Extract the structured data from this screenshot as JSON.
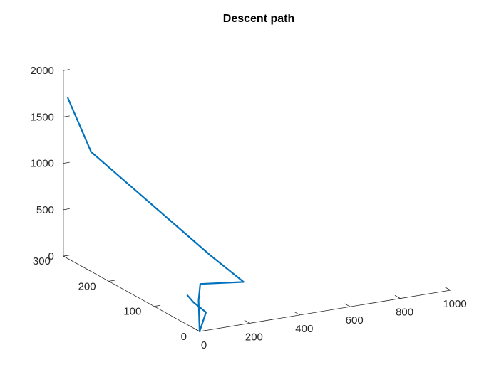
{
  "chart_data": {
    "type": "line3d",
    "title": "Descent path",
    "xlabel": "",
    "ylabel": "",
    "zlabel": "",
    "xlim": [
      0,
      1000
    ],
    "ylim": [
      0,
      300
    ],
    "zlim": [
      0,
      2000
    ],
    "xticks": [
      "0",
      "200",
      "400",
      "600",
      "800",
      "1000"
    ],
    "yticks": [
      "0",
      "100",
      "200",
      "300"
    ],
    "zticks": [
      "0",
      "500",
      "1000",
      "1500",
      "2000"
    ],
    "grid": false,
    "legend": "none",
    "series": [
      {
        "color": "#0072BD",
        "points": [
          [
            0,
            290,
            1730
          ],
          [
            20,
            250,
            1250
          ],
          [
            260,
            120,
            380
          ],
          [
            230,
            30,
            350
          ],
          [
            75,
            40,
            370
          ],
          [
            5,
            5,
            320
          ],
          [
            0,
            0,
            0
          ],
          [
            80,
            30,
            90
          ],
          [
            30,
            30,
            220
          ],
          [
            60,
            60,
            200
          ]
        ]
      }
    ]
  }
}
